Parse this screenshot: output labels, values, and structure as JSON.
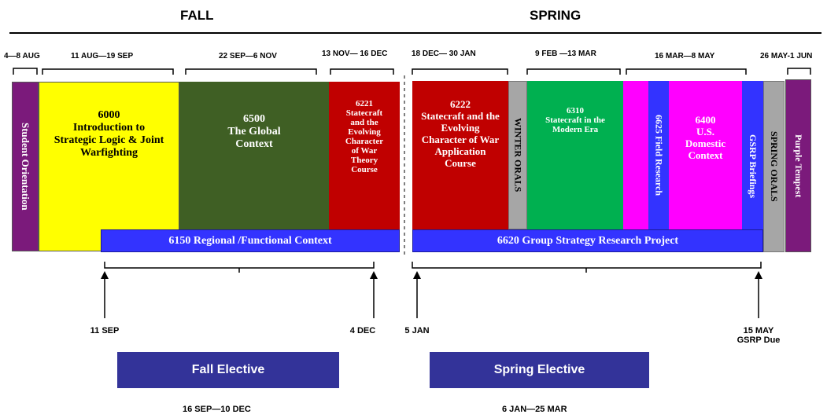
{
  "seasons": {
    "fall": "FALL",
    "spring": "SPRING"
  },
  "date_ranges": {
    "orientation": "4—8 AUG",
    "c6000": "11 AUG—19 SEP",
    "c6500": "22 SEP—6 NOV",
    "c6221": "13 NOV— 16 DEC",
    "c6222": "18 DEC— 30 JAN",
    "c6310": "9 FEB —13 MAR",
    "c6400": "16 MAR—8 MAY",
    "tempest": "26 MAY-1 JUN"
  },
  "blocks": {
    "orientation": "Student Orientation",
    "c6000": {
      "num": "6000",
      "title": "Introduction to Strategic Logic & Joint Warfighting"
    },
    "c6500": {
      "num": "6500",
      "title": "The Global Context"
    },
    "c6221": {
      "num": "6221",
      "title": "Statecraft and the Evolving Character of War Theory Course"
    },
    "c6222": {
      "num": "6222",
      "title": "Statecraft and the Evolving Character of War Application Course"
    },
    "winter_orals": "WINTER ORALS",
    "c6310": {
      "num": "6310",
      "title": "Statecraft in the Modern Era"
    },
    "c6625": "6625 Field Research",
    "c6400": {
      "num": "6400",
      "title": "U.S. Domestic Context"
    },
    "gsrp_briefings": "GSRP Briefings",
    "spring_orals": "SPRING ORALS",
    "purple_tempest": "Purple Tempest"
  },
  "bars": {
    "c6150": "6150 Regional /Functional Context",
    "c6620": "6620 Group Strategy Research Project"
  },
  "markers": {
    "sep11": "11 SEP",
    "dec4": "4 DEC",
    "jan5": "5 JAN",
    "may15": "15 MAY",
    "gsrp_due": "GSRP Due"
  },
  "electives": {
    "fall": {
      "label": "Fall Elective",
      "dates": "16 SEP—10 DEC"
    },
    "spring": {
      "label": "Spring Elective",
      "dates": "6 JAN—25 MAR"
    }
  },
  "colors": {
    "purple": "#7b1a7b",
    "yellow": "#ffff00",
    "darkgreen": "#3f5f24",
    "red": "#c00000",
    "gray": "#a6a6a6",
    "green": "#00b050",
    "magenta": "#ff00ff",
    "blue": "#3333ff",
    "navy": "#333399"
  }
}
